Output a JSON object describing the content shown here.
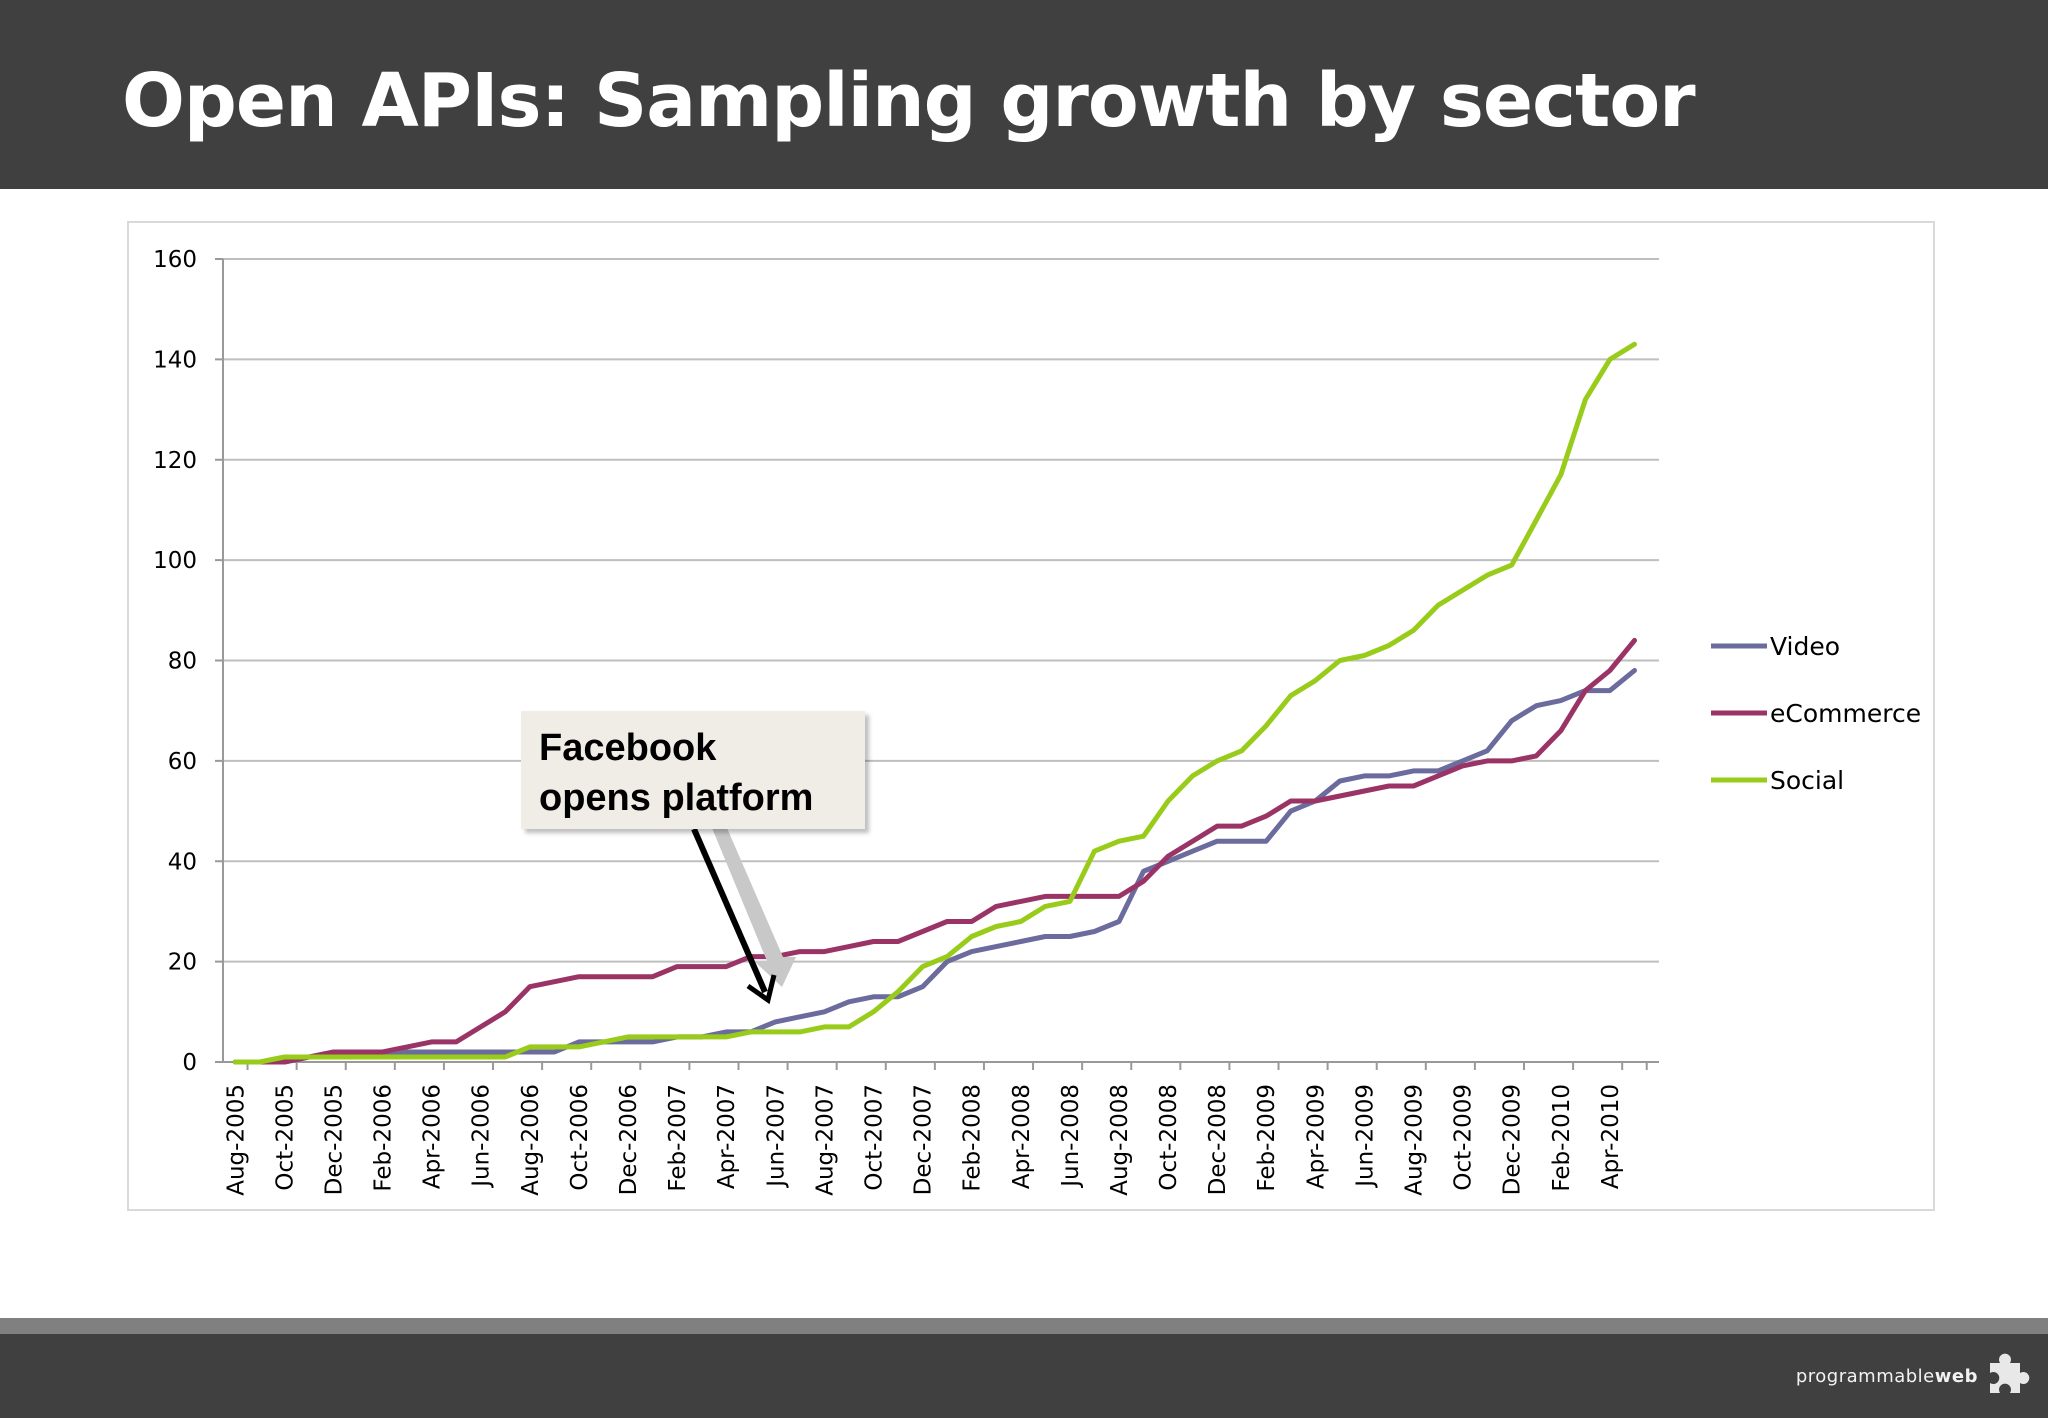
{
  "slide": {
    "title": "Open APIs: Sampling growth by sector",
    "callout_line1": "Facebook",
    "callout_line2": "opens platform",
    "logo_text": "programmable",
    "logo_suffix": "web"
  },
  "colors": {
    "title_bar": "#404040",
    "video": "#6b6b9e",
    "ecommerce": "#9b3466",
    "social": "#99cc1a",
    "grid": "#bfbfbf"
  },
  "chart_data": {
    "type": "line",
    "title": "",
    "xlabel": "",
    "ylabel": "",
    "ylim": [
      0,
      160
    ],
    "yticks": [
      0,
      20,
      40,
      60,
      80,
      100,
      120,
      140,
      160
    ],
    "x": [
      "2005-08",
      "2005-09",
      "2005-10",
      "2005-11",
      "2005-12",
      "2006-01",
      "2006-02",
      "2006-03",
      "2006-04",
      "2006-05",
      "2006-06",
      "2006-07",
      "2006-08",
      "2006-09",
      "2006-10",
      "2006-11",
      "2006-12",
      "2007-01",
      "2007-02",
      "2007-03",
      "2007-04",
      "2007-05",
      "2007-06",
      "2007-07",
      "2007-08",
      "2007-09",
      "2007-10",
      "2007-11",
      "2007-12",
      "2008-01",
      "2008-02",
      "2008-03",
      "2008-04",
      "2008-05",
      "2008-06",
      "2008-07",
      "2008-08",
      "2008-09",
      "2008-10",
      "2008-11",
      "2008-12",
      "2009-01",
      "2009-02",
      "2009-03",
      "2009-04",
      "2009-05",
      "2009-06",
      "2009-07",
      "2009-08",
      "2009-09",
      "2009-10",
      "2009-11",
      "2009-12",
      "2010-01",
      "2010-02",
      "2010-03",
      "2010-04",
      "2010-05"
    ],
    "x_tick_labels": [
      "Aug-2005",
      "Oct-2005",
      "Dec-2005",
      "Feb-2006",
      "Apr-2006",
      "Jun-2006",
      "Aug-2006",
      "Oct-2006",
      "Dec-2006",
      "Feb-2007",
      "Apr-2007",
      "Jun-2007",
      "Aug-2007",
      "Oct-2007",
      "Dec-2007",
      "Feb-2008",
      "Apr-2008",
      "Jun-2008",
      "Aug-2008",
      "Oct-2008",
      "Dec-2008",
      "Feb-2009",
      "Apr-2009",
      "Jun-2009",
      "Aug-2009",
      "Oct-2009",
      "Dec-2009",
      "Feb-2010",
      "Apr-2010"
    ],
    "legend_position": "right",
    "grid": true,
    "series": [
      {
        "name": "Video",
        "color": "#6b6b9e",
        "values": [
          0,
          0,
          0,
          1,
          1,
          1,
          1,
          2,
          2,
          2,
          2,
          2,
          2,
          2,
          4,
          4,
          4,
          4,
          5,
          5,
          6,
          6,
          8,
          9,
          10,
          12,
          13,
          13,
          15,
          20,
          22,
          23,
          24,
          25,
          25,
          26,
          28,
          38,
          40,
          42,
          44,
          44,
          44,
          50,
          52,
          56,
          57,
          57,
          58,
          58,
          60,
          62,
          68,
          71,
          72,
          74,
          74,
          78
        ]
      },
      {
        "name": "eCommerce",
        "color": "#9b3466",
        "values": [
          0,
          0,
          0,
          1,
          2,
          2,
          2,
          3,
          4,
          4,
          7,
          10,
          15,
          16,
          17,
          17,
          17,
          17,
          19,
          19,
          19,
          21,
          21,
          22,
          22,
          23,
          24,
          24,
          26,
          28,
          28,
          31,
          32,
          33,
          33,
          33,
          33,
          36,
          41,
          44,
          47,
          47,
          49,
          52,
          52,
          53,
          54,
          55,
          55,
          57,
          59,
          60,
          60,
          61,
          66,
          74,
          78,
          84
        ]
      },
      {
        "name": "Social",
        "color": "#99cc1a",
        "values": [
          0,
          0,
          1,
          1,
          1,
          1,
          1,
          1,
          1,
          1,
          1,
          1,
          3,
          3,
          3,
          4,
          5,
          5,
          5,
          5,
          5,
          6,
          6,
          6,
          7,
          7,
          10,
          14,
          19,
          21,
          25,
          27,
          28,
          31,
          32,
          42,
          44,
          45,
          52,
          57,
          60,
          62,
          67,
          73,
          76,
          80,
          81,
          83,
          86,
          91,
          94,
          97,
          99,
          108,
          117,
          132,
          140,
          143
        ]
      }
    ]
  }
}
